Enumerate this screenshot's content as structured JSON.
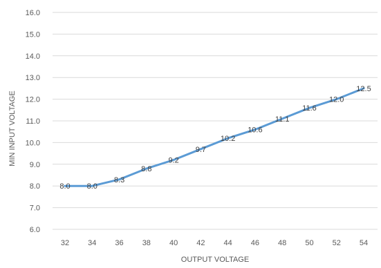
{
  "chart_data": {
    "type": "line",
    "xlabel": "OUTPUT VOLTAGE",
    "ylabel": "MIN INPUT VOLTAGE",
    "x": [
      32,
      34,
      36,
      38,
      40,
      42,
      44,
      46,
      48,
      50,
      52,
      54
    ],
    "series": [
      {
        "values": [
          8.0,
          8.0,
          8.3,
          8.8,
          9.2,
          9.7,
          10.2,
          10.6,
          11.1,
          11.6,
          12.0,
          12.5
        ],
        "labels": [
          "8.0",
          "8.0",
          "8.3",
          "8.8",
          "9.2",
          "9.7",
          "10.2",
          "10.6",
          "11.1",
          "11.6",
          "12.0",
          "12.5"
        ],
        "color": "#5b9bd5"
      }
    ],
    "ylim": [
      6.0,
      16.0
    ],
    "yticks": [
      "6.0",
      "7.0",
      "8.0",
      "9.0",
      "10.0",
      "11.0",
      "12.0",
      "13.0",
      "14.0",
      "15.0",
      "16.0"
    ],
    "xticks": [
      "32",
      "34",
      "36",
      "38",
      "40",
      "42",
      "44",
      "46",
      "48",
      "50",
      "52",
      "54"
    ],
    "grid": true,
    "legend": "none",
    "colors": {
      "grid": "#d9d9d9",
      "tick_text": "#595959",
      "label_text": "#595959",
      "data_label_text": "#404040"
    }
  }
}
